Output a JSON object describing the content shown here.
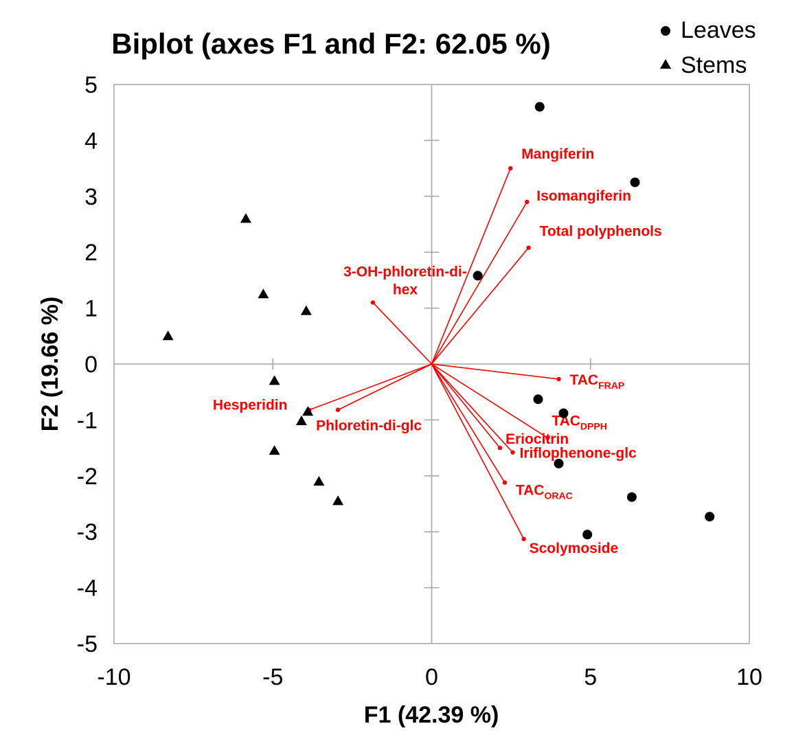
{
  "chart_data": {
    "type": "scatter",
    "title": "Biplot (axes F1 and F2: 62.05 %)",
    "xlabel": "F1 (42.39 %)",
    "ylabel": "F2 (19.66 %)",
    "xlim": [
      -10,
      10
    ],
    "ylim": [
      -5,
      5
    ],
    "xticks": [
      -10,
      -5,
      0,
      5,
      10
    ],
    "yticks": [
      -5,
      -4,
      -3,
      -2,
      -1,
      0,
      1,
      2,
      3,
      4,
      5
    ],
    "xtick_labels": [
      "-10",
      "-5",
      "0",
      "5",
      "10"
    ],
    "ytick_labels": [
      "-5",
      "-4",
      "-3",
      "-2",
      "-1",
      "0",
      "1",
      "2",
      "3",
      "4",
      "5"
    ],
    "legend_position": "top-right",
    "series": [
      {
        "name": "Leaves",
        "marker": "circle",
        "color": "#000000",
        "points": [
          {
            "x": 3.4,
            "y": 4.6
          },
          {
            "x": 6.4,
            "y": 3.25
          },
          {
            "x": 1.45,
            "y": 1.58
          },
          {
            "x": 3.35,
            "y": -0.63
          },
          {
            "x": 4.15,
            "y": -0.88
          },
          {
            "x": 4.0,
            "y": -1.78
          },
          {
            "x": 6.3,
            "y": -2.38
          },
          {
            "x": 8.75,
            "y": -2.73
          },
          {
            "x": 4.9,
            "y": -3.05
          }
        ]
      },
      {
        "name": "Stems",
        "marker": "triangle",
        "color": "#000000",
        "points": [
          {
            "x": -5.85,
            "y": 2.6
          },
          {
            "x": -5.3,
            "y": 1.25
          },
          {
            "x": -3.95,
            "y": 0.95
          },
          {
            "x": -8.3,
            "y": 0.5
          },
          {
            "x": -4.95,
            "y": -0.3
          },
          {
            "x": -3.9,
            "y": -0.85
          },
          {
            "x": -4.1,
            "y": -1.02
          },
          {
            "x": -4.95,
            "y": -1.55
          },
          {
            "x": -3.55,
            "y": -2.1
          },
          {
            "x": -2.95,
            "y": -2.45
          }
        ]
      }
    ],
    "vector_color": "#ff0000",
    "vectors": [
      {
        "name": "Mangiferin",
        "sub": "",
        "x": 2.48,
        "y": 3.5
      },
      {
        "name": "Isomangiferin",
        "sub": "",
        "x": 3.0,
        "y": 2.9
      },
      {
        "name": "Total polyphenols",
        "sub": "",
        "x": 3.05,
        "y": 2.08
      },
      {
        "name": "3-OH-phloretin-di-",
        "name2": "hex",
        "sub": "",
        "x": -1.85,
        "y": 1.1
      },
      {
        "name": "TAC",
        "sub": "FRAP",
        "x": 4.0,
        "y": -0.27
      },
      {
        "name": "TAC",
        "sub": "DPPH",
        "x": 3.65,
        "y": -1.32
      },
      {
        "name": "Iriflophenone-glc",
        "sub": "",
        "x": 2.55,
        "y": -1.58
      },
      {
        "name": "Eriocitrin",
        "sub": "",
        "x": 2.15,
        "y": -1.5
      },
      {
        "name": "TAC",
        "sub": "ORAC",
        "x": 2.3,
        "y": -2.12
      },
      {
        "name": "Scolymoside",
        "sub": "",
        "x": 2.9,
        "y": -3.13
      },
      {
        "name": "Hesperidin",
        "sub": "",
        "x": -3.85,
        "y": -0.82
      },
      {
        "name": "Phloretin-di-glc",
        "sub": "",
        "x": -2.95,
        "y": -0.82
      }
    ]
  }
}
